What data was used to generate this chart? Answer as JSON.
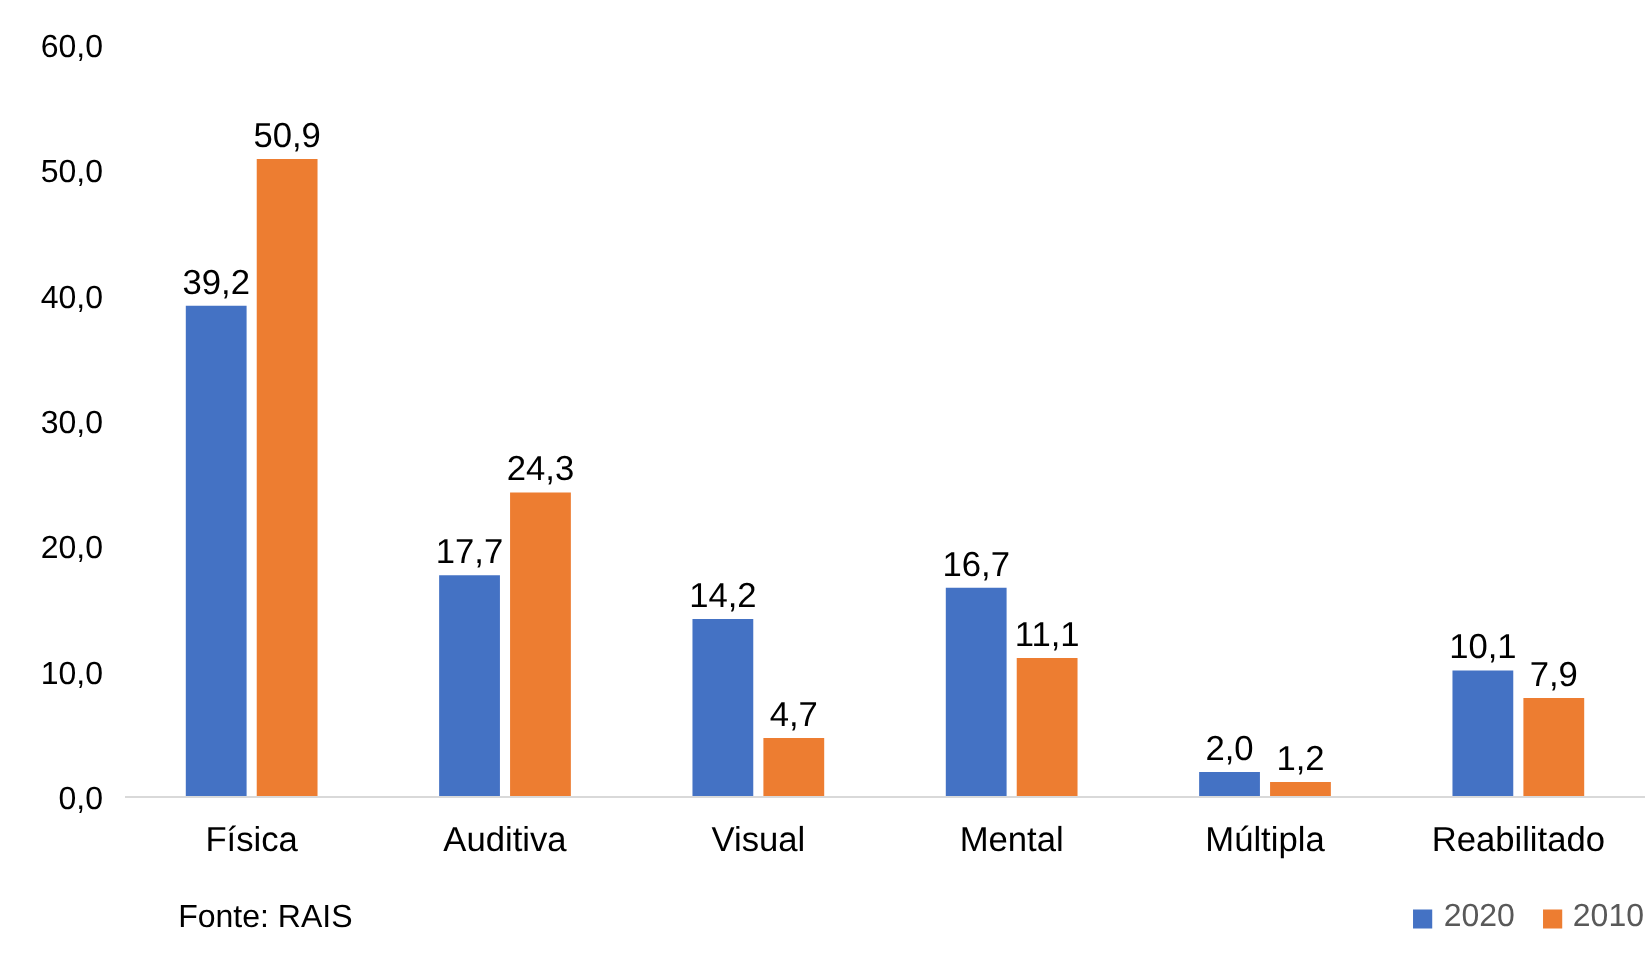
{
  "chart_data": {
    "type": "bar",
    "categories": [
      "Física",
      "Auditiva",
      "Visual",
      "Mental",
      "Múltipla",
      "Reabilitado"
    ],
    "series": [
      {
        "name": "2020",
        "color": "#4472c4",
        "values": [
          39.2,
          17.7,
          14.2,
          16.7,
          2.0,
          10.1
        ],
        "value_labels": [
          "39,2",
          "17,7",
          "14,2",
          "16,7",
          "2,0",
          "10,1"
        ]
      },
      {
        "name": "2010",
        "color": "#ed7d31",
        "values": [
          50.9,
          24.3,
          4.7,
          11.1,
          1.2,
          7.9
        ],
        "value_labels": [
          "50,9",
          "24,3",
          "4,7",
          "11,1",
          "1,2",
          "7,9"
        ]
      }
    ],
    "ylim": [
      0,
      60
    ],
    "yticks": [
      {
        "value": 0,
        "label": "0,0"
      },
      {
        "value": 10,
        "label": "10,0"
      },
      {
        "value": 20,
        "label": "20,0"
      },
      {
        "value": 30,
        "label": "30,0"
      },
      {
        "value": 40,
        "label": "40,0"
      },
      {
        "value": 50,
        "label": "50,0"
      },
      {
        "value": 60,
        "label": "60,0"
      }
    ],
    "grid": false,
    "legend": "bottom right",
    "annotations": [
      "Fonte: RAIS"
    ]
  }
}
